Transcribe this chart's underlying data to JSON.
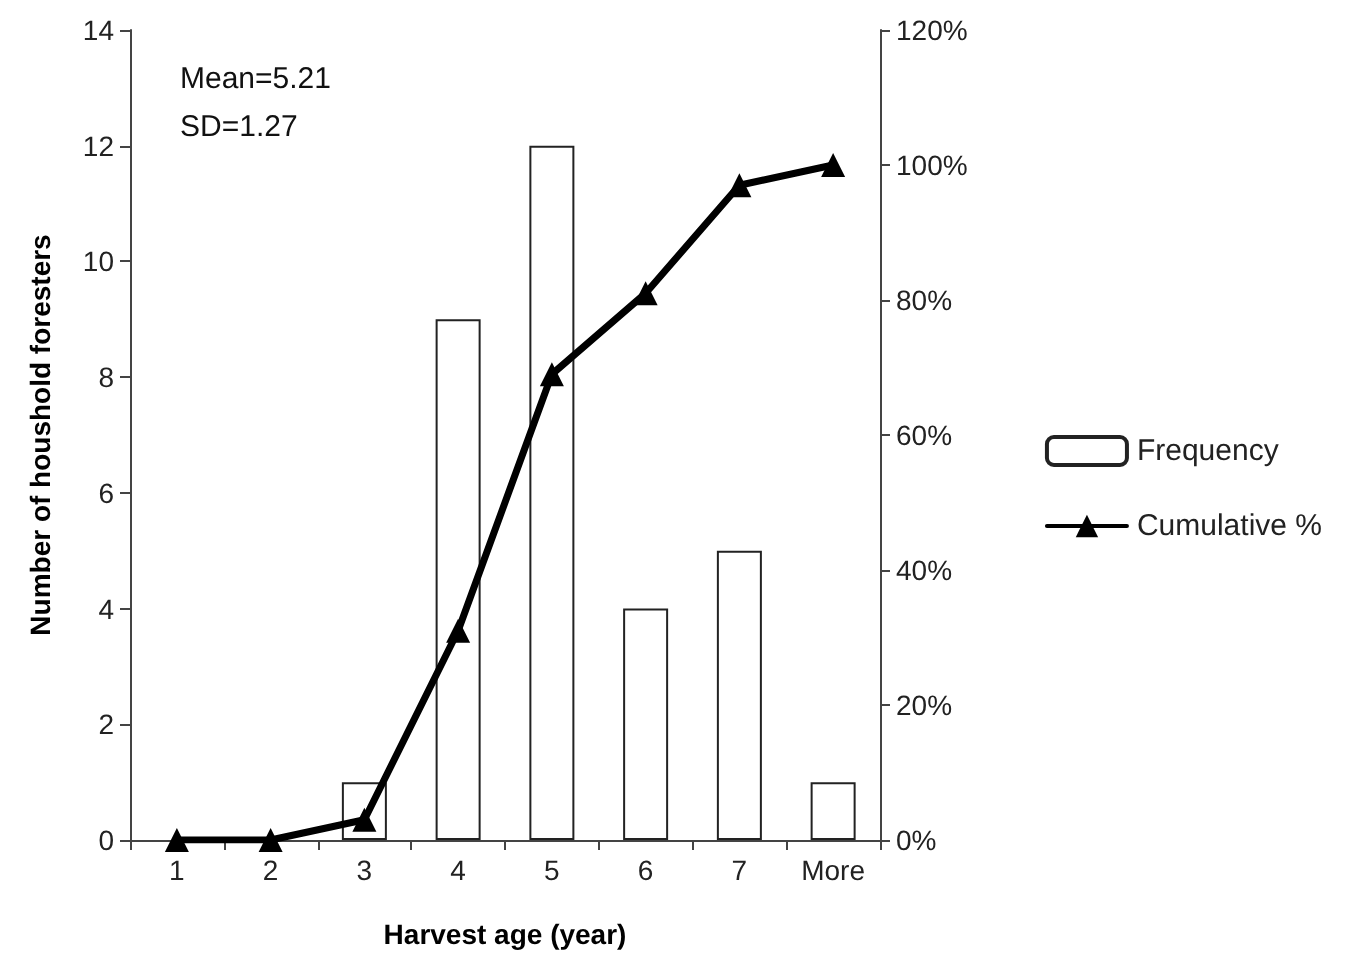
{
  "chart_data": {
    "type": "bar",
    "xlabel": "Harvest age (year)",
    "ylabel": "Number of houshold foresters",
    "categories": [
      "1",
      "2",
      "3",
      "4",
      "5",
      "6",
      "7",
      "More"
    ],
    "series": [
      {
        "name": "Frequency",
        "color": "#ffffff",
        "values": [
          0,
          0,
          1,
          9,
          12,
          4,
          5,
          1
        ]
      },
      {
        "name": "Cumulative %",
        "type": "line",
        "axis": "y2",
        "color": "#000000",
        "marker": "triangle",
        "line_style": "solid",
        "values": [
          0,
          0,
          3,
          31,
          69,
          81,
          97,
          100
        ]
      }
    ],
    "ylim": [
      0,
      14
    ],
    "yticks": [
      0,
      2,
      4,
      6,
      8,
      10,
      12,
      14
    ],
    "y2lim": [
      0,
      120
    ],
    "y2ticks": [
      {
        "value": 0,
        "label": "0%"
      },
      {
        "value": 20,
        "label": "20%"
      },
      {
        "value": 40,
        "label": "40%"
      },
      {
        "value": 60,
        "label": "60%"
      },
      {
        "value": 80,
        "label": "80%"
      },
      {
        "value": 100,
        "label": "100%"
      },
      {
        "value": 120,
        "label": "120%"
      }
    ],
    "annotations": [
      "Mean=5.21",
      "SD=1.27"
    ],
    "legend": "right",
    "grid": false
  }
}
